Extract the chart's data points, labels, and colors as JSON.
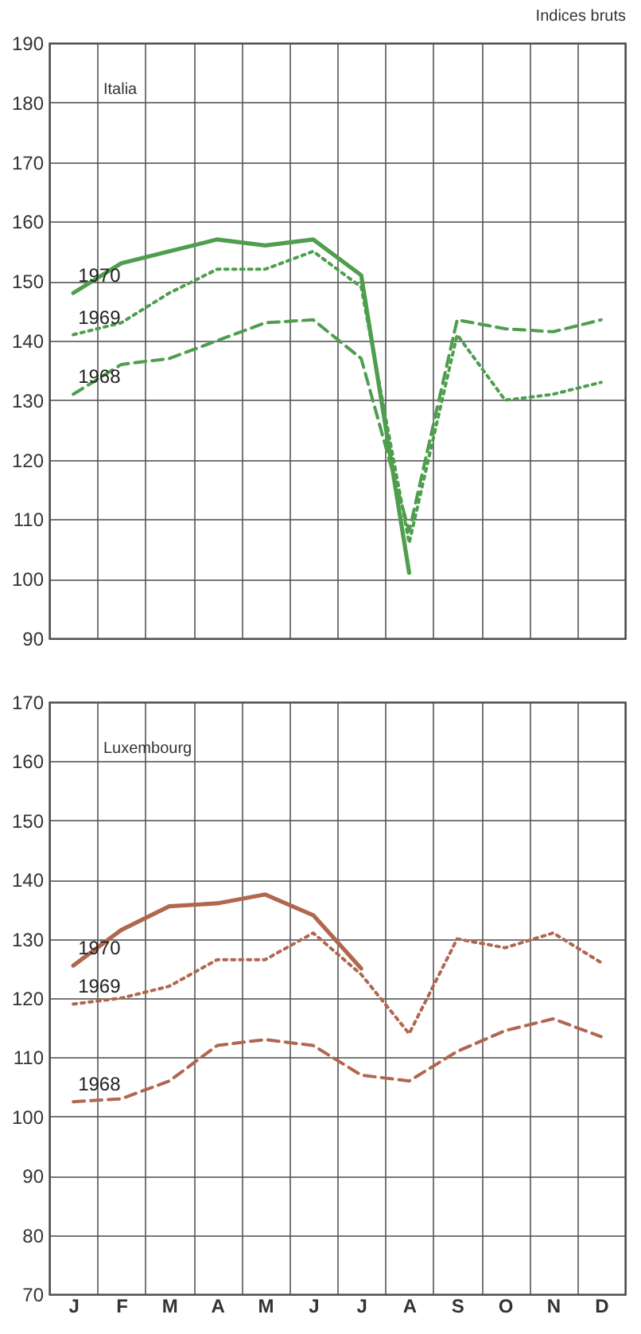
{
  "chart_data": [
    {
      "type": "line",
      "title": "Italia",
      "annotations": [
        "Indices bruts"
      ],
      "categories": [
        null,
        null,
        null,
        null,
        null,
        null,
        null,
        null,
        null,
        null,
        null,
        null
      ],
      "ylim": [
        90,
        190
      ],
      "yticks": [
        90,
        100,
        110,
        120,
        130,
        140,
        150,
        160,
        170,
        180,
        190
      ],
      "grid": true,
      "tick_labels": "y",
      "series": [
        {
          "name": "1970",
          "color": "#4e9e4e",
          "line_style": "solid",
          "values": [
            148,
            153,
            155,
            157,
            156,
            157,
            151,
            101,
            null,
            null,
            null,
            null
          ]
        },
        {
          "name": "1969",
          "color": "#4e9e4e",
          "line_style": "dotted",
          "values": [
            141,
            143,
            148,
            152,
            152,
            155,
            149,
            106,
            141,
            130,
            131,
            133
          ]
        },
        {
          "name": "1968",
          "color": "#4e9e4e",
          "line_style": "dashed",
          "values": [
            131,
            136,
            137,
            140,
            143,
            143.5,
            137,
            108,
            143.5,
            142,
            141.5,
            143.5
          ]
        }
      ]
    },
    {
      "type": "line",
      "title": "Luxembourg",
      "categories": [
        "J",
        "F",
        "M",
        "A",
        "M",
        "J",
        "J",
        "A",
        "S",
        "O",
        "N",
        "D"
      ],
      "ylim": [
        70,
        170
      ],
      "yticks": [
        70,
        80,
        90,
        100,
        110,
        120,
        130,
        140,
        150,
        160,
        170
      ],
      "grid": true,
      "series": [
        {
          "name": "1970",
          "color": "#b0674f",
          "line_style": "solid",
          "values": [
            125.5,
            131.5,
            135.5,
            136,
            137.5,
            134,
            125,
            null,
            null,
            null,
            null,
            null
          ]
        },
        {
          "name": "1969",
          "color": "#b0674f",
          "line_style": "dotted",
          "values": [
            119,
            120,
            122,
            126.5,
            126.5,
            131,
            124,
            114,
            130,
            128.5,
            131,
            126
          ]
        },
        {
          "name": "1968",
          "color": "#b0674f",
          "line_style": "dashed",
          "values": [
            102.5,
            103,
            106,
            112,
            113,
            112,
            107,
            106,
            111,
            114.5,
            116.5,
            113.5
          ]
        }
      ]
    }
  ]
}
